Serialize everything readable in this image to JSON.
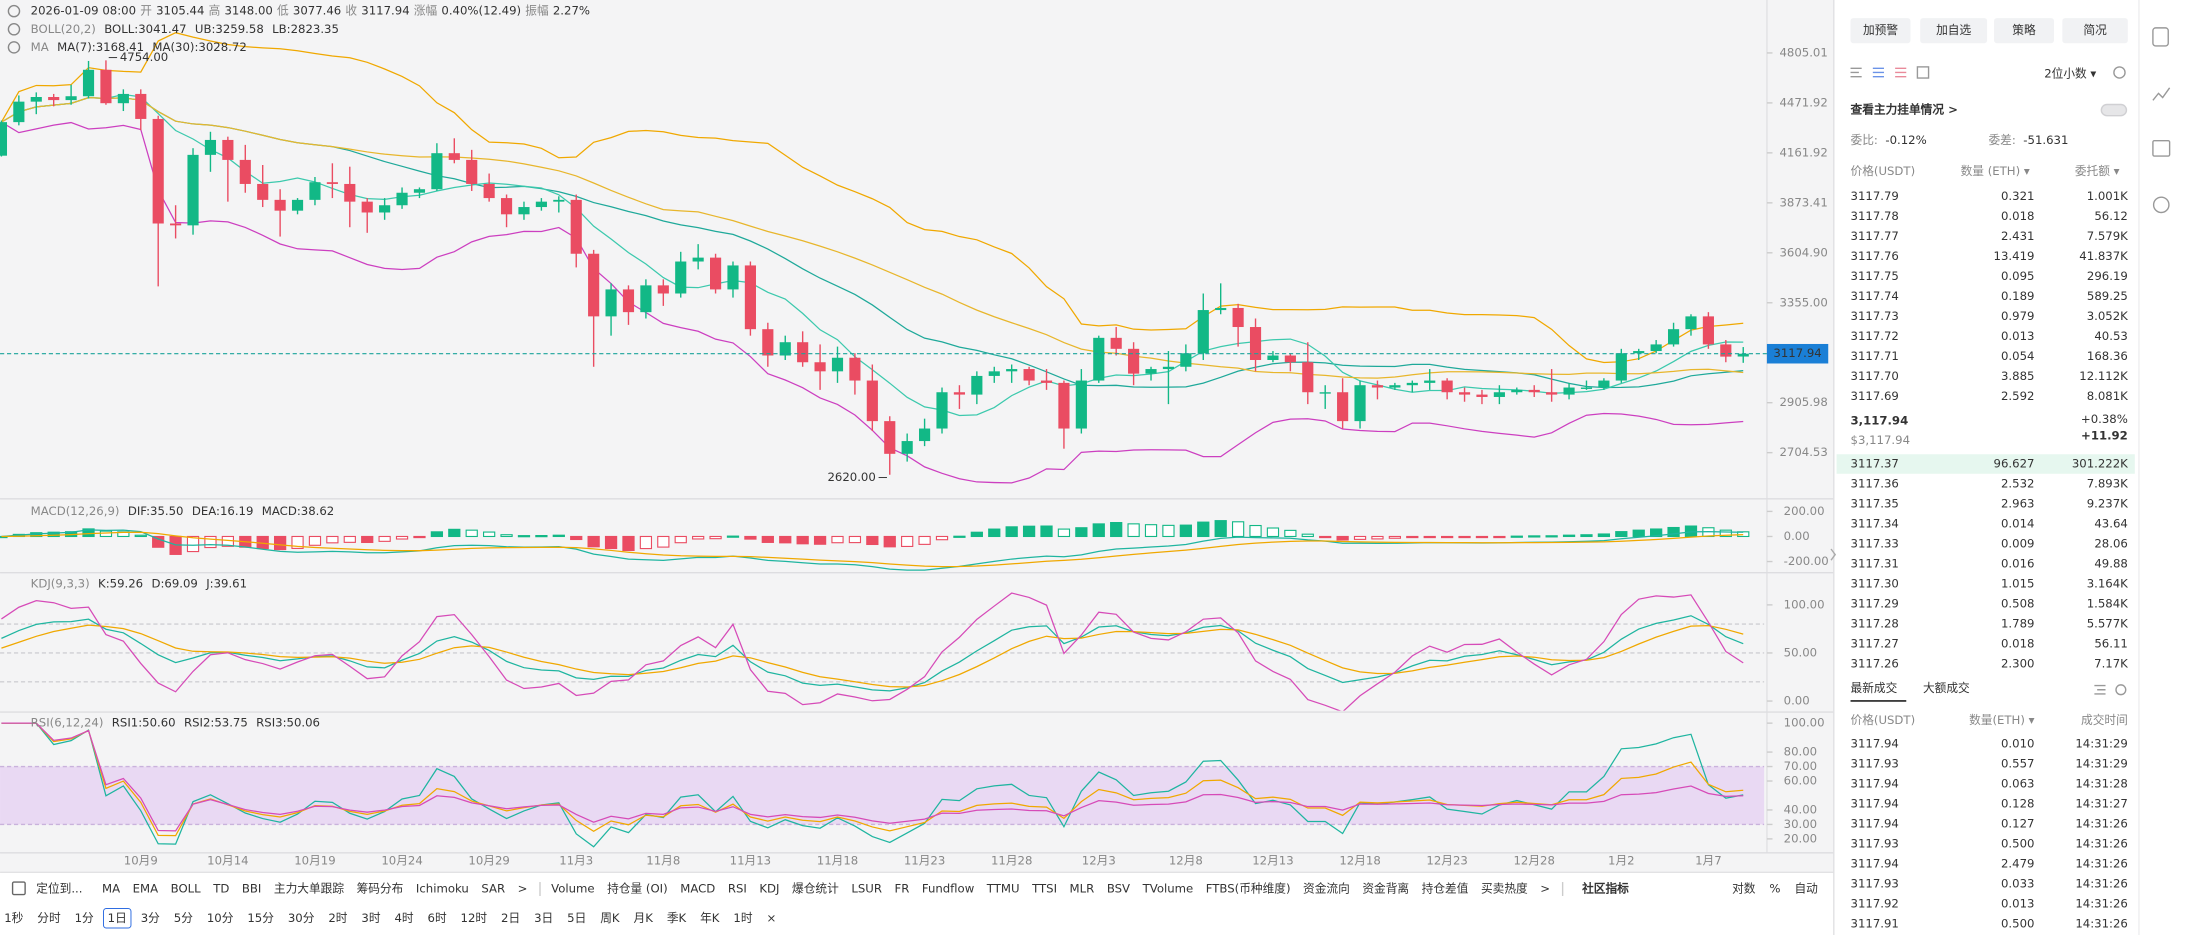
{
  "chart_data": [
    {
      "type": "candlestick",
      "header": [
        {
          "value": "2026-01-09 08:00"
        },
        {
          "label": "开",
          "value": "3105.44"
        },
        {
          "label": "高",
          "value": "3148.00"
        },
        {
          "label": "低",
          "value": "3077.46"
        },
        {
          "label": "收",
          "value": "3117.94"
        },
        {
          "label": "涨幅",
          "value": "0.40%(12.49)"
        },
        {
          "label": "振幅",
          "value": "2.27%"
        }
      ],
      "legends": [
        {
          "name": "BOLL(20,2)",
          "items": [
            {
              "text": "BOLL:3041.47",
              "color": "#1fa99a"
            },
            {
              "text": "UB:3259.58",
              "color": "#f0a800"
            },
            {
              "text": "LB:2823.35",
              "color": "#cc3fc0"
            }
          ]
        },
        {
          "name": "MA",
          "items": [
            {
              "text": "MA(7):3168.41",
              "color": "#3cc9ad"
            },
            {
              "text": "MA(30):3028.72",
              "color": "#e8b62c"
            }
          ]
        }
      ],
      "categories": [
        null,
        null,
        null,
        null,
        null,
        null,
        null,
        null,
        "10月9",
        null,
        null,
        null,
        null,
        "10月14",
        null,
        null,
        null,
        null,
        "10月19",
        null,
        null,
        null,
        null,
        "10月24",
        null,
        null,
        null,
        null,
        "10月29",
        null,
        null,
        null,
        null,
        "11月3",
        null,
        null,
        null,
        null,
        "11月8",
        null,
        null,
        null,
        null,
        "11月13",
        null,
        null,
        null,
        null,
        "11月18",
        null,
        null,
        null,
        null,
        "11月23",
        null,
        null,
        null,
        null,
        "11月28",
        null,
        null,
        null,
        null,
        "12月3",
        null,
        null,
        null,
        null,
        "12月8",
        null,
        null,
        null,
        null,
        "12月13",
        null,
        null,
        null,
        null,
        "12月18",
        null,
        null,
        null,
        null,
        "12月23",
        null,
        null,
        null,
        null,
        "12月28",
        null,
        null,
        null,
        null,
        "1月2",
        null,
        null,
        null,
        null,
        "1月7",
        null,
        null
      ],
      "open": [
        4145,
        4350,
        4480,
        4510,
        4490,
        4515,
        4690,
        4470,
        4530,
        4370,
        3760,
        3750,
        4150,
        4240,
        4120,
        3980,
        3890,
        3830,
        3890,
        3990,
        3980,
        3880,
        3820,
        3860,
        3930,
        3950,
        4160,
        4120,
        3980,
        3900,
        3810,
        3850,
        3880,
        3890,
        3600,
        3290,
        3420,
        3310,
        3440,
        3400,
        3560,
        3580,
        3420,
        3540,
        3230,
        3110,
        3170,
        3080,
        3040,
        3100,
        3000,
        2830,
        2700,
        2750,
        2800,
        2950,
        2940,
        3020,
        3040,
        3050,
        3000,
        2990,
        2800,
        3000,
        3190,
        3140,
        3030,
        3050,
        3060,
        3120,
        3320,
        3330,
        3240,
        3090,
        3110,
        3080,
        2950,
        2950,
        2830,
        2980,
        2970,
        2980,
        2990,
        3000,
        2950,
        2940,
        2930,
        2950,
        2960,
        2950,
        2940,
        2970,
        2970,
        3000,
        3120,
        3130,
        3160,
        3230,
        3290,
        3160,
        3105.44
      ],
      "high": [
        4360,
        4520,
        4540,
        4530,
        4590,
        4750,
        4754,
        4560,
        4560,
        4390,
        3860,
        4190,
        4290,
        4260,
        4210,
        4090,
        3950,
        3900,
        4020,
        4100,
        4080,
        3900,
        3900,
        3960,
        3960,
        4220,
        4250,
        4180,
        4040,
        3920,
        3880,
        3900,
        3910,
        3920,
        3620,
        3450,
        3440,
        3470,
        3470,
        3610,
        3650,
        3600,
        3560,
        3560,
        3260,
        3200,
        3220,
        3160,
        3150,
        3120,
        3070,
        2850,
        2780,
        2840,
        2970,
        2980,
        3040,
        3060,
        3070,
        3060,
        3050,
        3000,
        3050,
        3200,
        3240,
        3170,
        3060,
        3130,
        3160,
        3400,
        3450,
        3350,
        3280,
        3130,
        3120,
        3170,
        2980,
        3010,
        3000,
        3000,
        2990,
        3000,
        3050,
        3010,
        2970,
        2960,
        2980,
        2970,
        2980,
        3050,
        2990,
        3000,
        3010,
        3140,
        3140,
        3180,
        3260,
        3300,
        3310,
        3180,
        3148
      ],
      "low": [
        4140,
        4330,
        4400,
        4450,
        4460,
        4500,
        4460,
        4420,
        4300,
        3435,
        3680,
        3700,
        4050,
        3880,
        3930,
        3850,
        3690,
        3810,
        3860,
        3900,
        3740,
        3710,
        3780,
        3840,
        3900,
        3940,
        4100,
        3940,
        3880,
        3740,
        3780,
        3830,
        3820,
        3530,
        3060,
        3200,
        3250,
        3280,
        3340,
        3380,
        3520,
        3400,
        3380,
        3200,
        3060,
        3090,
        3060,
        2960,
        2990,
        2940,
        2790,
        2620,
        2670,
        2730,
        2780,
        2880,
        2900,
        2990,
        2990,
        2980,
        2960,
        2720,
        2780,
        2990,
        3110,
        2980,
        3000,
        2900,
        3040,
        3090,
        3300,
        3150,
        3040,
        3080,
        3040,
        2900,
        2880,
        2800,
        2800,
        2920,
        2960,
        2950,
        2960,
        2920,
        2910,
        2900,
        2900,
        2940,
        2930,
        2910,
        2920,
        2960,
        2960,
        2990,
        3090,
        3120,
        3150,
        3200,
        3140,
        3080,
        3077.46
      ],
      "close": [
        4350,
        4480,
        4510,
        4490,
        4515,
        4690,
        4470,
        4530,
        4370,
        3760,
        3750,
        4150,
        4240,
        4120,
        3980,
        3890,
        3830,
        3890,
        3990,
        3980,
        3880,
        3820,
        3860,
        3930,
        3950,
        4160,
        4120,
        3980,
        3900,
        3810,
        3850,
        3880,
        3890,
        3600,
        3290,
        3420,
        3310,
        3440,
        3400,
        3560,
        3580,
        3420,
        3540,
        3230,
        3110,
        3170,
        3080,
        3040,
        3100,
        3000,
        2830,
        2700,
        2750,
        2800,
        2950,
        2940,
        3020,
        3040,
        3050,
        3000,
        2990,
        2800,
        3000,
        3190,
        3140,
        3030,
        3050,
        3060,
        3120,
        3320,
        3330,
        3240,
        3090,
        3110,
        3080,
        2950,
        2950,
        2830,
        2980,
        2970,
        2980,
        2990,
        3000,
        2950,
        2940,
        2930,
        2950,
        2960,
        2950,
        2940,
        2970,
        2970,
        3000,
        3120,
        3130,
        3160,
        3230,
        3290,
        3160,
        3105,
        3117.94
      ],
      "up_color": "#12b886",
      "down_color": "#ea4c62",
      "log": true,
      "ylim": [
        2546,
        5185
      ],
      "yticks": [
        4805.01,
        4471.92,
        4161.92,
        3873.41,
        {
          "value": 3604.9,
          "label": "3604.90"
        },
        {
          "value": 3355,
          "label": "3355.00"
        },
        2905.98,
        2704.53
      ],
      "last_price": 3117.94,
      "high_label": "4754.00",
      "low_label": "2620.00"
    },
    {
      "type": "macd",
      "legends": [
        {
          "name": "MACD(12,26,9)",
          "items": [
            {
              "text": "DIF:35.50",
              "color": "#1fb5a0"
            },
            {
              "text": "DEA:16.19",
              "color": "#f0a800"
            },
            {
              "text": "MACD:38.62",
              "color": "#d64bb8"
            }
          ]
        }
      ],
      "ylim": [
        -278,
        278
      ],
      "yticks": [
        {
          "value": 200,
          "label": "200.00"
        },
        {
          "value": 0,
          "label": "0.00"
        },
        {
          "value": -200,
          "label": "-200.00"
        }
      ]
    },
    {
      "type": "kdj",
      "legends": [
        {
          "name": "KDJ(9,3,3)",
          "items": [
            {
              "text": "K:59.26",
              "color": "#1fb5a0"
            },
            {
              "text": "D:69.09",
              "color": "#f0a800"
            },
            {
              "text": "J:39.61",
              "color": "#d64bb8"
            }
          ]
        }
      ],
      "ylim": [
        -10,
        132
      ],
      "yticks": [
        {
          "value": 100,
          "label": "100.00"
        },
        {
          "value": 50,
          "label": "50.00"
        },
        {
          "value": 0,
          "label": "0.00"
        }
      ],
      "guides": [
        80,
        50,
        20
      ]
    },
    {
      "type": "rsi",
      "legends": [
        {
          "name": "RSI(6,12,24)",
          "items": [
            {
              "text": "RSI1:50.60",
              "color": "#1fb5a0"
            },
            {
              "text": "RSI2:53.75",
              "color": "#f0a800"
            },
            {
              "text": "RSI3:50.06",
              "color": "#d64bb8"
            }
          ]
        }
      ],
      "ylim": [
        10.4,
        106.7
      ],
      "yticks": [
        {
          "value": 100,
          "label": "100.00"
        },
        {
          "value": 80,
          "label": "80.00"
        },
        {
          "value": 70,
          "label": "70.00"
        },
        {
          "value": 60,
          "label": "60.00"
        },
        {
          "value": 40,
          "label": "40.00"
        },
        {
          "value": 30,
          "label": "30.00"
        },
        {
          "value": 20,
          "label": "20.00"
        }
      ],
      "band": [
        30,
        70
      ]
    }
  ],
  "panel": {
    "buttons": [
      "加预警",
      "加自选",
      "策略",
      "简况"
    ],
    "precision": "2位小数 ▾",
    "main_orders": "查看主力挂单情况 >",
    "ratio_label": "委比:",
    "ratio": "-0.12%",
    "diff_label": "委差:",
    "diff": "-51.631",
    "book_header": [
      "价格(USDT)",
      "数量 (ETH) ▾",
      "委托额 ▾"
    ],
    "asks": [
      [
        "3117.79",
        "0.321",
        "1.001K"
      ],
      [
        "3117.78",
        "0.018",
        "56.12"
      ],
      [
        "3117.77",
        "2.431",
        "7.579K"
      ],
      [
        "3117.76",
        "13.419",
        "41.837K"
      ],
      [
        "3117.75",
        "0.095",
        "296.19"
      ],
      [
        "3117.74",
        "0.189",
        "589.25"
      ],
      [
        "3117.73",
        "0.979",
        "3.052K"
      ],
      [
        "3117.72",
        "0.013",
        "40.53"
      ],
      [
        "3117.71",
        "0.054",
        "168.36"
      ],
      [
        "3117.70",
        "3.885",
        "12.112K"
      ],
      [
        "3117.69",
        "2.592",
        "8.081K"
      ]
    ],
    "mid_price": "3,117.94",
    "mid_usd": "$3,117.94",
    "mid_change": "+0.38%",
    "mid_delta": "+11.92",
    "bids": [
      [
        "3117.37",
        "96.627",
        "301.222K"
      ],
      [
        "3117.36",
        "2.532",
        "7.893K"
      ],
      [
        "3117.35",
        "2.963",
        "9.237K"
      ],
      [
        "3117.34",
        "0.014",
        "43.64"
      ],
      [
        "3117.33",
        "0.009",
        "28.06"
      ],
      [
        "3117.31",
        "0.016",
        "49.88"
      ],
      [
        "3117.30",
        "1.015",
        "3.164K"
      ],
      [
        "3117.29",
        "0.508",
        "1.584K"
      ],
      [
        "3117.28",
        "1.789",
        "5.577K"
      ],
      [
        "3117.27",
        "0.018",
        "56.11"
      ],
      [
        "3117.26",
        "2.300",
        "7.17K"
      ]
    ],
    "tabs": [
      "最新成交",
      "大额成交"
    ],
    "trades_header": [
      "价格(USDT)",
      "数量(ETH) ▾",
      "成交时间"
    ],
    "trades": [
      [
        "3117.94",
        "0.010",
        "14:31:29",
        "buy"
      ],
      [
        "3117.93",
        "0.557",
        "14:31:29",
        "sell"
      ],
      [
        "3117.94",
        "0.063",
        "14:31:28",
        "buy"
      ],
      [
        "3117.94",
        "0.128",
        "14:31:27",
        "buy"
      ],
      [
        "3117.94",
        "0.127",
        "14:31:26",
        "buy"
      ],
      [
        "3117.93",
        "0.500",
        "14:31:26",
        "sell"
      ],
      [
        "3117.94",
        "2.479",
        "14:31:26",
        "buy"
      ],
      [
        "3117.93",
        "0.033",
        "14:31:26",
        "buy"
      ],
      [
        "3117.92",
        "0.013",
        "14:31:26",
        "buy"
      ],
      [
        "3117.91",
        "0.500",
        "14:31:26",
        "buy"
      ]
    ]
  },
  "toolbar": {
    "locate": "定位到...",
    "indicators": [
      {
        "text": "MA",
        "active": true
      },
      {
        "text": "EMA"
      },
      {
        "text": "BOLL",
        "active": true
      },
      {
        "text": "TD"
      },
      {
        "text": "BBI"
      },
      {
        "text": "主力大单跟踪"
      },
      {
        "text": "筹码分布"
      },
      {
        "text": "Ichimoku"
      },
      {
        "text": "SAR"
      },
      {
        "text": ">"
      },
      {
        "text": "Volume"
      },
      {
        "text": "持仓量 (OI)"
      },
      {
        "text": "MACD",
        "active": true
      },
      {
        "text": "RSI",
        "active": true
      },
      {
        "text": "KDJ",
        "active": true
      },
      {
        "text": "爆仓统计"
      },
      {
        "text": "LSUR"
      },
      {
        "text": "FR"
      },
      {
        "text": "Fundflow"
      },
      {
        "text": "TTMU"
      },
      {
        "text": "TTSI"
      },
      {
        "text": "MLR"
      },
      {
        "text": "BSV"
      },
      {
        "text": "TVolume"
      },
      {
        "text": "FTBS(币种维度)"
      },
      {
        "text": "资金流向"
      },
      {
        "text": "资金背离"
      },
      {
        "text": "持仓差值"
      },
      {
        "text": "买卖热度"
      },
      {
        "text": ">"
      }
    ],
    "community": "社区指标",
    "right": [
      {
        "text": "对数",
        "active": true
      },
      {
        "text": "%"
      },
      {
        "text": "自动",
        "active": true
      }
    ],
    "periods": [
      {
        "text": "1秒"
      },
      {
        "text": "分时"
      },
      {
        "text": "1分"
      },
      {
        "text": "1日",
        "active": true
      },
      {
        "text": "3分"
      },
      {
        "text": "5分"
      },
      {
        "text": "10分"
      },
      {
        "text": "15分"
      },
      {
        "text": "30分"
      },
      {
        "text": "2时"
      },
      {
        "text": "3时"
      },
      {
        "text": "4时"
      },
      {
        "text": "6时"
      },
      {
        "text": "12时"
      },
      {
        "text": "2日"
      },
      {
        "text": "3日"
      },
      {
        "text": "5日"
      },
      {
        "text": "周K"
      },
      {
        "text": "月K"
      },
      {
        "text": "季K"
      },
      {
        "text": "年K"
      },
      {
        "text": "1时"
      },
      {
        "text": "×"
      }
    ]
  }
}
